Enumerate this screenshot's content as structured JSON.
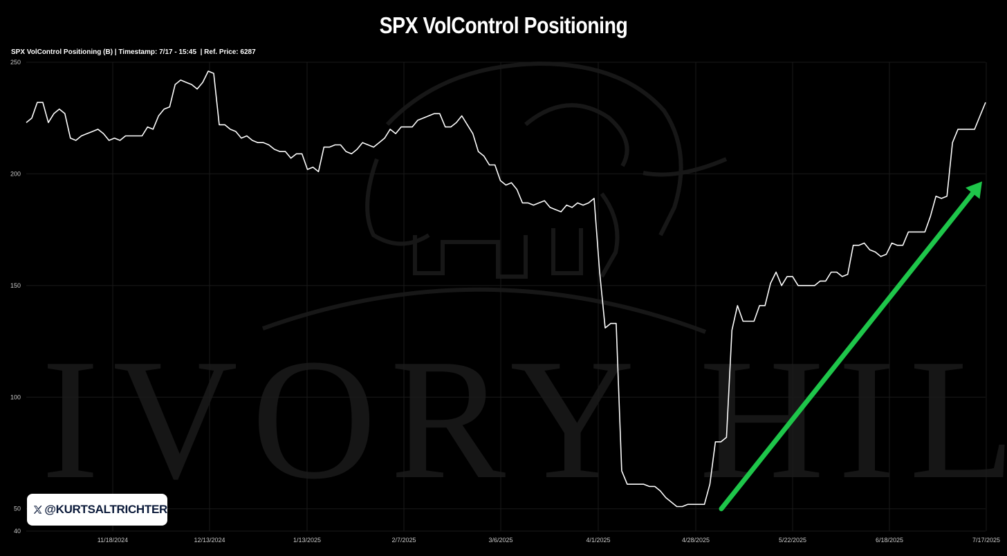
{
  "title": "SPX VolControl Positioning",
  "subtitle": "SPX VolControl Positioning (B) | Timestamp: 7/17 - 15:45  | Ref. Price: 6287",
  "watermark": {
    "text": "IVORY HILL",
    "logo_icon": "elephant-icon"
  },
  "badge": {
    "icon": "x-logo-icon",
    "handle": "@KURTSALTRICHTER"
  },
  "colors": {
    "background": "#000000",
    "line": "#ffffff",
    "arrow": "#1ec64a",
    "grid": "#1a1a1a"
  },
  "chart_data": {
    "type": "line",
    "title": "SPX VolControl Positioning",
    "xlabel": "",
    "ylabel": "",
    "ylim": [
      40,
      250
    ],
    "y_ticks": [
      250,
      200,
      150,
      100,
      50,
      40
    ],
    "x_tick_labels": [
      "11/18/2024",
      "12/13/2024",
      "1/13/2025",
      "2/7/2025",
      "3/6/2025",
      "4/1/2025",
      "4/28/2025",
      "5/22/2025",
      "6/18/2025",
      "7/17/2025"
    ],
    "grid": true,
    "series": [
      {
        "name": "",
        "values": [
          223,
          225,
          232,
          232,
          223,
          227,
          229,
          227,
          216,
          215,
          217,
          218,
          219,
          220,
          218,
          215,
          216,
          215,
          217,
          217,
          217,
          217,
          221,
          220,
          226,
          229,
          230,
          240,
          242,
          241,
          240,
          238,
          241,
          246,
          245,
          222,
          222,
          220,
          219,
          216,
          217,
          215,
          214,
          214,
          213,
          211,
          210,
          210,
          207,
          209,
          209,
          202,
          203,
          201,
          212,
          212,
          213,
          213,
          210,
          209,
          211,
          214,
          213,
          212,
          214,
          216,
          220,
          218,
          221,
          221,
          221,
          224,
          225,
          226,
          227,
          227,
          221,
          221,
          223,
          226,
          222,
          218,
          210,
          208,
          204,
          204,
          197,
          195,
          196,
          193,
          187,
          187,
          186,
          187,
          188,
          185,
          184,
          183,
          186,
          185,
          187,
          186,
          187,
          189,
          156,
          131,
          133,
          133,
          67,
          61,
          61,
          61,
          61,
          60,
          60,
          58,
          55,
          53,
          51,
          51,
          52,
          52,
          52,
          52,
          61,
          80,
          80,
          82,
          130,
          141,
          134,
          134,
          134,
          141,
          141,
          151,
          156,
          150,
          154,
          154,
          150,
          150,
          150,
          150,
          152,
          152,
          156,
          156,
          154,
          155,
          168,
          168,
          169,
          166,
          165,
          163,
          164,
          169,
          168,
          168,
          174,
          174,
          174,
          174,
          181,
          190,
          189,
          190,
          214,
          220,
          220,
          220,
          220,
          226,
          232
        ]
      }
    ],
    "annotation_arrow": {
      "from": {
        "x_label": "4/28/2025",
        "y": 50
      },
      "to": {
        "x_label": "7/17/2025",
        "y": 196
      }
    }
  }
}
